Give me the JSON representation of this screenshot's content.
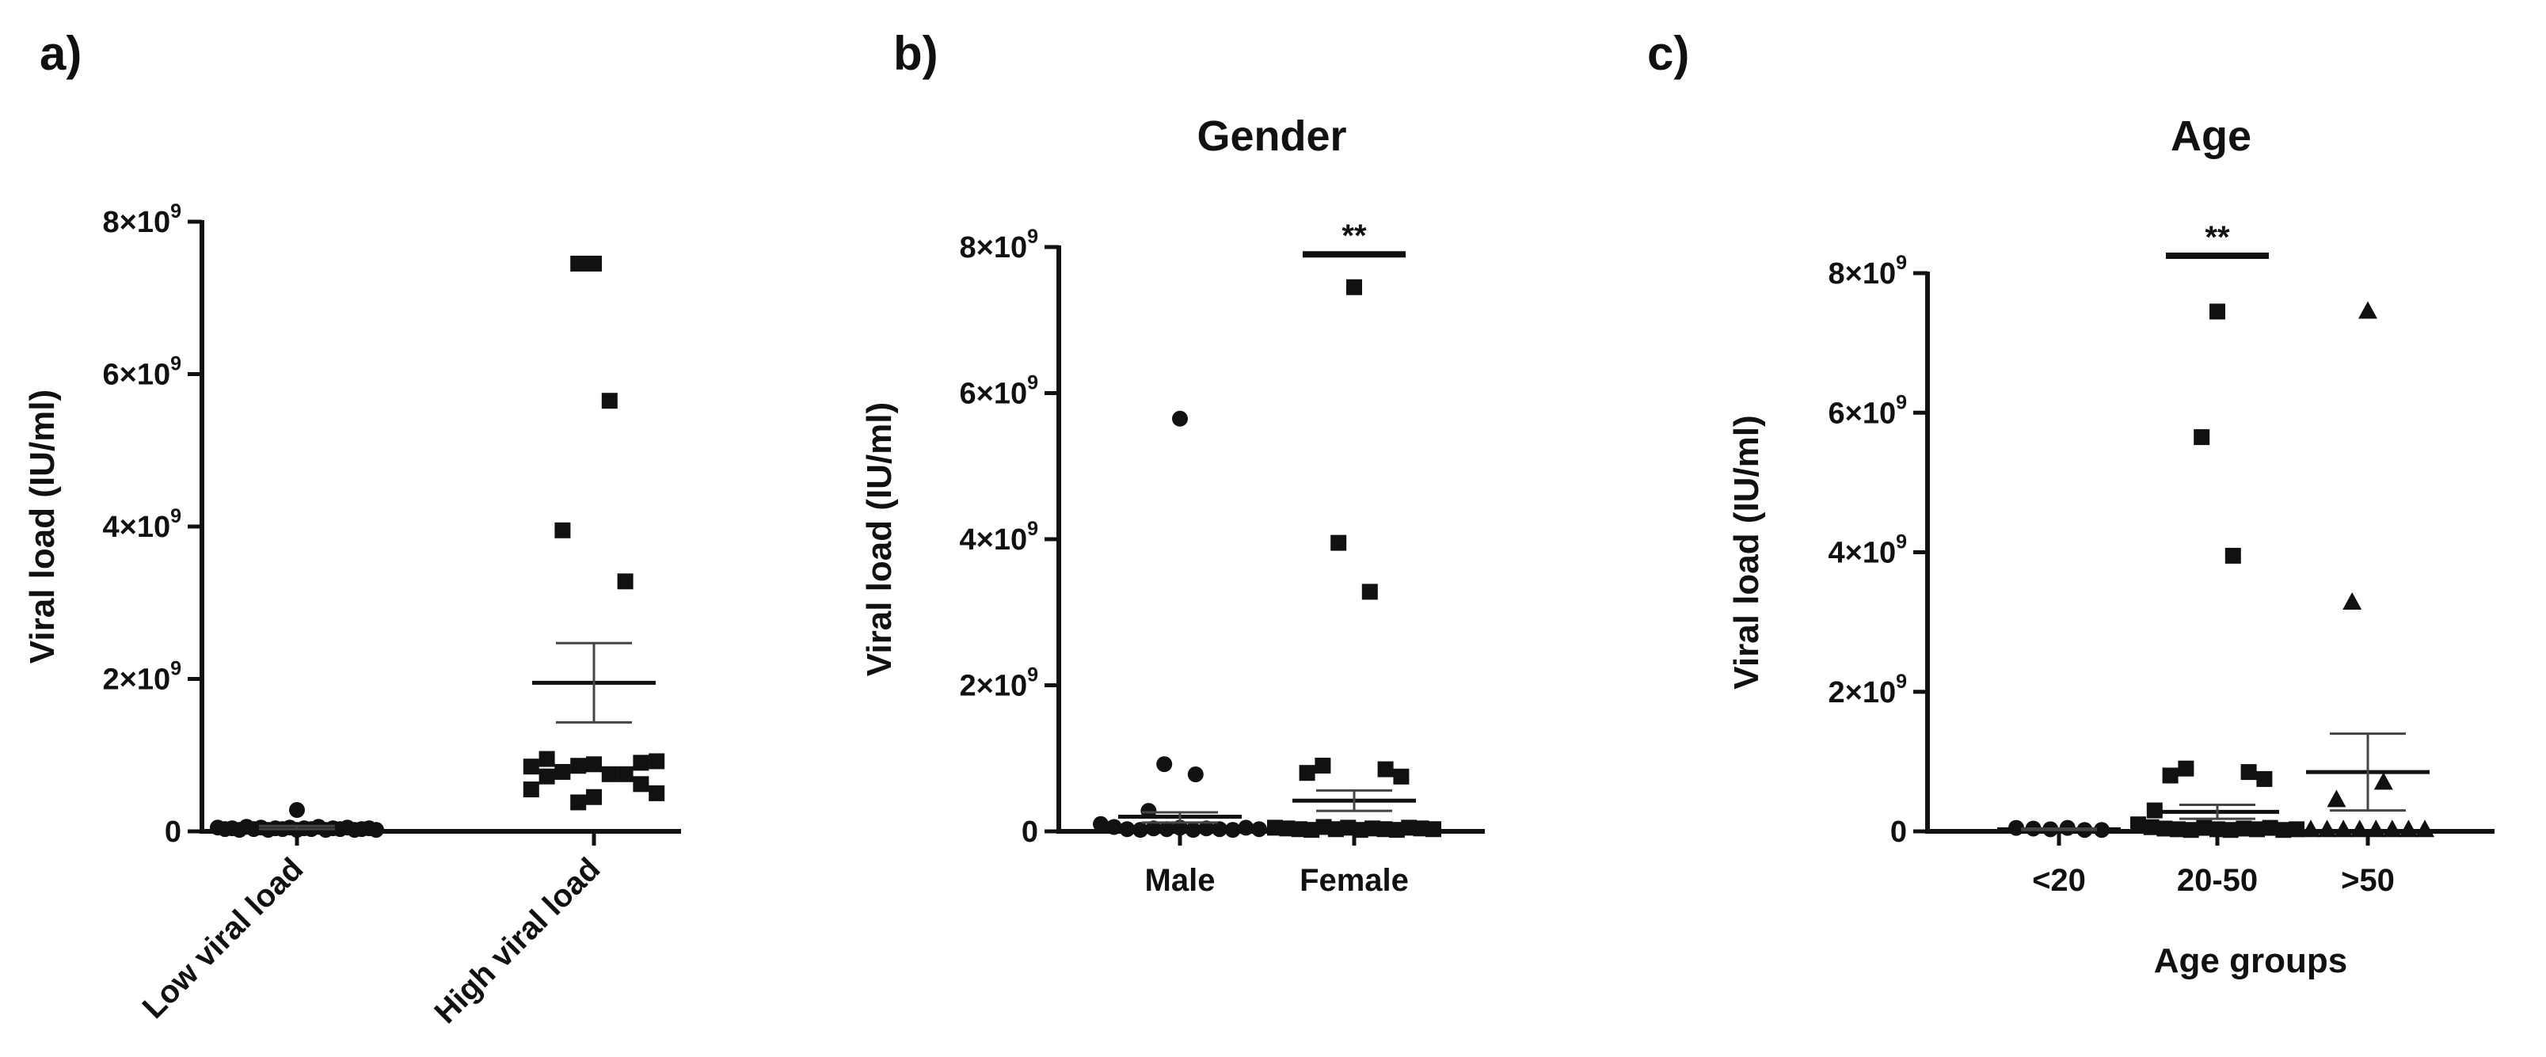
{
  "figure": {
    "labels": [
      "a)",
      "b)",
      "c)"
    ]
  },
  "chart_data": [
    {
      "id": "a",
      "panel_label": "a)",
      "type": "scatter",
      "title": "",
      "xlabel": "",
      "ylabel": "Viral load (IU/ml)",
      "ylim": [
        0,
        8000000000
      ],
      "yticks": [
        {
          "value": 0,
          "base": "0",
          "exp": ""
        },
        {
          "value": 2000000000,
          "base": "2×10",
          "exp": "9"
        },
        {
          "value": 4000000000,
          "base": "4×10",
          "exp": "9"
        },
        {
          "value": 6000000000,
          "base": "6×10",
          "exp": "9"
        },
        {
          "value": 8000000000,
          "base": "8×10",
          "exp": "9"
        }
      ],
      "categories": [
        "Low viral load",
        "High viral load"
      ],
      "x_label_rotation": -45,
      "series": [
        {
          "name": "Low viral load",
          "marker": "circle",
          "values": [
            280000000.0,
            50000000.0,
            30000000.0,
            40000000.0,
            20000000.0,
            60000000.0,
            30000000.0,
            50000000.0,
            20000000.0,
            40000000.0,
            30000000.0,
            50000000.0,
            20000000.0,
            40000000.0,
            30000000.0,
            60000000.0,
            20000000.0,
            40000000.0,
            30000000.0,
            50000000.0,
            20000000.0,
            30000000.0,
            40000000.0,
            20000000.0
          ],
          "mean": 50000000.0,
          "sem_low": 30000000.0,
          "sem_high": 70000000.0
        },
        {
          "name": "High viral load",
          "marker": "square",
          "values": [
            7450000000.0,
            7450000000.0,
            5650000000.0,
            3950000000.0,
            3280000000.0,
            950000000.0,
            900000000.0,
            850000000.0,
            920000000.0,
            880000000.0,
            860000000.0,
            750000000.0,
            780000000.0,
            750000000.0,
            720000000.0,
            620000000.0,
            550000000.0,
            500000000.0,
            450000000.0,
            380000000.0
          ],
          "mean": 1950000000.0,
          "sem_low": 1430000000.0,
          "sem_high": 2470000000.0
        }
      ],
      "significance": []
    },
    {
      "id": "b",
      "panel_label": "b)",
      "type": "scatter",
      "title": "Gender",
      "xlabel": "",
      "ylabel": "Viral load (IU/ml)",
      "ylim": [
        0,
        8000000000
      ],
      "yticks": [
        {
          "value": 0,
          "base": "0",
          "exp": ""
        },
        {
          "value": 2000000000,
          "base": "2×10",
          "exp": "9"
        },
        {
          "value": 4000000000,
          "base": "4×10",
          "exp": "9"
        },
        {
          "value": 6000000000,
          "base": "6×10",
          "exp": "9"
        },
        {
          "value": 8000000000,
          "base": "8×10",
          "exp": "9"
        }
      ],
      "categories": [
        "Male",
        "Female"
      ],
      "x_label_rotation": 0,
      "series": [
        {
          "name": "Male",
          "marker": "circle",
          "values": [
            5650000000.0,
            920000000.0,
            780000000.0,
            280000000.0,
            100000000.0,
            60000000.0,
            30000000.0,
            20000000.0,
            40000000.0,
            30000000.0,
            50000000.0,
            20000000.0,
            40000000.0,
            30000000.0,
            20000000.0,
            50000000.0,
            30000000.0
          ],
          "mean": 200000000.0,
          "sem_low": 120000000.0,
          "sem_high": 260000000.0
        },
        {
          "name": "Female",
          "marker": "square",
          "values": [
            7450000000.0,
            3950000000.0,
            3280000000.0,
            900000000.0,
            850000000.0,
            800000000.0,
            750000000.0,
            50000000.0,
            40000000.0,
            30000000.0,
            20000000.0,
            60000000.0,
            30000000.0,
            50000000.0,
            20000000.0,
            40000000.0,
            30000000.0,
            20000000.0,
            50000000.0,
            40000000.0,
            30000000.0
          ],
          "mean": 420000000.0,
          "sem_low": 280000000.0,
          "sem_high": 560000000.0
        }
      ],
      "significance": [
        {
          "label": "**",
          "category": 1,
          "y_value": 7900000000.0
        }
      ]
    },
    {
      "id": "c",
      "panel_label": "c)",
      "type": "scatter",
      "title": "Age",
      "xlabel": "Age groups",
      "ylabel": "Viral load (IU/ml)",
      "ylim": [
        0,
        8000000000
      ],
      "yticks": [
        {
          "value": 0,
          "base": "0",
          "exp": ""
        },
        {
          "value": 2000000000,
          "base": "2×10",
          "exp": "9"
        },
        {
          "value": 4000000000,
          "base": "4×10",
          "exp": "9"
        },
        {
          "value": 6000000000,
          "base": "6×10",
          "exp": "9"
        },
        {
          "value": 8000000000,
          "base": "8×10",
          "exp": "9"
        }
      ],
      "categories": [
        "<20",
        "20-50",
        ">50"
      ],
      "x_label_rotation": 0,
      "series": [
        {
          "name": "<20",
          "marker": "circle",
          "values": [
            50000000.0,
            40000000.0,
            30000000.0,
            50000000.0,
            20000000.0,
            20000000.0
          ],
          "mean": 30000000.0,
          "sem_low": 20000000.0,
          "sem_high": 40000000.0
        },
        {
          "name": "20-50",
          "marker": "square",
          "values": [
            7450000000.0,
            5650000000.0,
            3950000000.0,
            900000000.0,
            850000000.0,
            800000000.0,
            750000000.0,
            300000000.0,
            100000000.0,
            60000000.0,
            40000000.0,
            30000000.0,
            20000000.0,
            50000000.0,
            30000000.0,
            20000000.0,
            40000000.0,
            30000000.0,
            50000000.0,
            20000000.0,
            30000000.0
          ],
          "mean": 280000000.0,
          "sem_low": 180000000.0,
          "sem_high": 380000000.0
        },
        {
          "name": ">50",
          "marker": "triangle",
          "values": [
            7450000000.0,
            3280000000.0,
            700000000.0,
            450000000.0,
            20000000.0,
            20000000.0,
            20000000.0,
            20000000.0,
            20000000.0,
            20000000.0,
            20000000.0,
            20000000.0
          ],
          "mean": 850000000.0,
          "sem_low": 300000000.0,
          "sem_high": 1400000000.0
        }
      ],
      "significance": [
        {
          "label": "**",
          "category": 1,
          "y_value": 8250000000.0
        }
      ]
    }
  ]
}
